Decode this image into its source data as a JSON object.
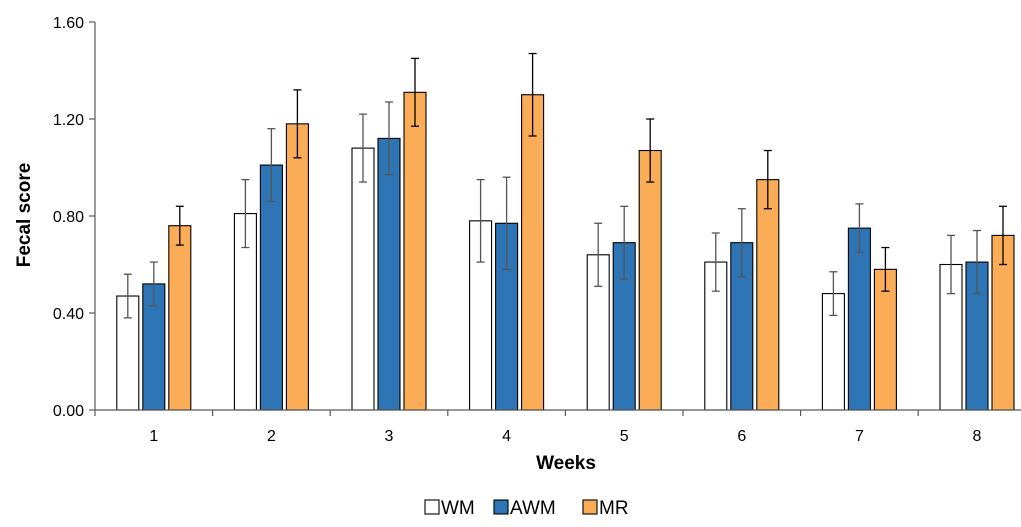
{
  "chart_data": {
    "type": "bar",
    "title": "",
    "xlabel": "Weeks",
    "ylabel": "Fecal score",
    "ylim": [
      0,
      1.6
    ],
    "yticks": [
      "0.00",
      "0.40",
      "0.80",
      "1.20",
      "1.60"
    ],
    "categories": [
      "1",
      "2",
      "3",
      "4",
      "5",
      "6",
      "7",
      "8"
    ],
    "grid": false,
    "legend_position": "bottom",
    "error_bars": true,
    "series": [
      {
        "name": "WM",
        "color": "#ffffff",
        "values": [
          0.47,
          0.81,
          1.08,
          0.78,
          0.64,
          0.61,
          0.48,
          0.6
        ],
        "errors": [
          0.09,
          0.14,
          0.14,
          0.17,
          0.13,
          0.12,
          0.09,
          0.12
        ]
      },
      {
        "name": "AWM",
        "color": "#2e75b6",
        "values": [
          0.52,
          1.01,
          1.12,
          0.77,
          0.69,
          0.69,
          0.75,
          0.61
        ],
        "errors": [
          0.09,
          0.15,
          0.15,
          0.19,
          0.15,
          0.14,
          0.1,
          0.13
        ]
      },
      {
        "name": "MR",
        "color": "#fbac57",
        "values": [
          0.76,
          1.18,
          1.31,
          1.3,
          1.07,
          0.95,
          0.58,
          0.72
        ],
        "errors": [
          0.08,
          0.14,
          0.14,
          0.17,
          0.13,
          0.12,
          0.09,
          0.12
        ]
      }
    ]
  }
}
